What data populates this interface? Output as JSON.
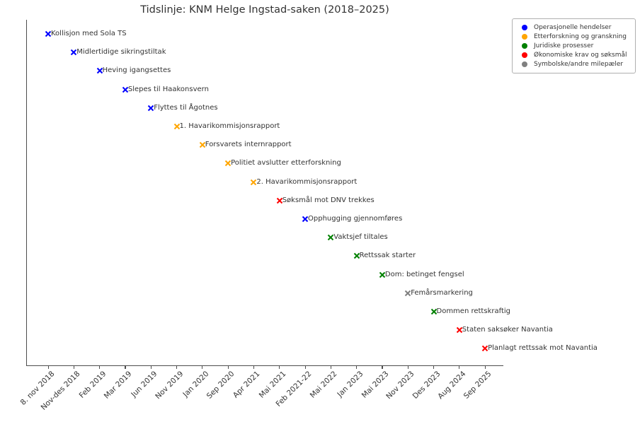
{
  "title": "Tidslinje: KNM Helge Ingstad-saken (2018–2025)",
  "chart_data": {
    "type": "scatter",
    "title": "Tidslinje: KNM Helge Ingstad-saken (2018–2025)",
    "xlabel": "",
    "ylabel": "",
    "grid": false,
    "marker_style": "x",
    "legend_position": "upper right",
    "category_colors": {
      "Operasjonelle hendelser": "#0000ff",
      "Etterforskning og granskning": "#ffa500",
      "Juridiske prosesser": "#008000",
      "Økonomiske krav og søksmål": "#ff0000",
      "Symbolske/andre milepæler": "#808080"
    },
    "legend_entries": [
      {
        "label": "Operasjonelle hendelser",
        "color": "#0000ff"
      },
      {
        "label": "Etterforskning og granskning",
        "color": "#ffa500"
      },
      {
        "label": "Juridiske prosesser",
        "color": "#008000"
      },
      {
        "label": "Økonomiske krav og søksmål",
        "color": "#ff0000"
      },
      {
        "label": "Symbolske/andre milepæler",
        "color": "#808080"
      }
    ],
    "x_tick_labels": [
      "8. nov 2018",
      "Nov-des 2018",
      "Feb 2019",
      "Mar 2019",
      "Jun 2019",
      "Nov 2019",
      "Jan 2020",
      "Sep 2020",
      "Apr 2021",
      "Mai 2021",
      "Feb 2021-22",
      "Mai 2022",
      "Jan 2023",
      "Mai 2023",
      "Nov 2023",
      "Des 2023",
      "Aug 2024",
      "Sep 2025"
    ],
    "points": [
      {
        "label": "Kollisjon med Sola TS",
        "date": "8. nov 2018",
        "y": 18,
        "category": "Operasjonelle hendelser"
      },
      {
        "label": "Midlertidige sikringstiltak",
        "date": "Nov-des 2018",
        "y": 17,
        "category": "Operasjonelle hendelser"
      },
      {
        "label": "Heving igangsettes",
        "date": "Feb 2019",
        "y": 16,
        "category": "Operasjonelle hendelser"
      },
      {
        "label": "Slepes til Haakonsvern",
        "date": "Mar 2019",
        "y": 15,
        "category": "Operasjonelle hendelser"
      },
      {
        "label": "Flyttes til Ågotnes",
        "date": "Jun 2019",
        "y": 14,
        "category": "Operasjonelle hendelser"
      },
      {
        "label": "1. Havarikommisjonsrapport",
        "date": "Nov 2019",
        "y": 13,
        "category": "Etterforskning og granskning"
      },
      {
        "label": "Forsvarets internrapport",
        "date": "Jan 2020",
        "y": 12,
        "category": "Etterforskning og granskning"
      },
      {
        "label": "Politiet avslutter etterforskning",
        "date": "Sep 2020",
        "y": 11,
        "category": "Etterforskning og granskning"
      },
      {
        "label": "2. Havarikommisjonsrapport",
        "date": "Apr 2021",
        "y": 10,
        "category": "Etterforskning og granskning"
      },
      {
        "label": "Søksmål mot DNV trekkes",
        "date": "Mai 2021",
        "y": 9,
        "category": "Økonomiske krav og søksmål"
      },
      {
        "label": "Opphugging gjennomføres",
        "date": "Feb 2021-22",
        "y": 8,
        "category": "Operasjonelle hendelser"
      },
      {
        "label": "Vaktsjef tiltales",
        "date": "Mai 2022",
        "y": 7,
        "category": "Juridiske prosesser"
      },
      {
        "label": "Rettssak starter",
        "date": "Jan 2023",
        "y": 6,
        "category": "Juridiske prosesser"
      },
      {
        "label": "Dom: betinget fengsel",
        "date": "Mai 2023",
        "y": 5,
        "category": "Juridiske prosesser"
      },
      {
        "label": "Femårsmarkering",
        "date": "Nov 2023",
        "y": 4,
        "category": "Symbolske/andre milepæler"
      },
      {
        "label": "Dommen rettskraftig",
        "date": "Des 2023",
        "y": 3,
        "category": "Juridiske prosesser"
      },
      {
        "label": "Staten saksøker Navantia",
        "date": "Aug 2024",
        "y": 2,
        "category": "Økonomiske krav og søksmål"
      },
      {
        "label": "Planlagt rettssak mot Navantia",
        "date": "Sep 2025",
        "y": 1,
        "category": "Økonomiske krav og søksmål"
      }
    ]
  }
}
